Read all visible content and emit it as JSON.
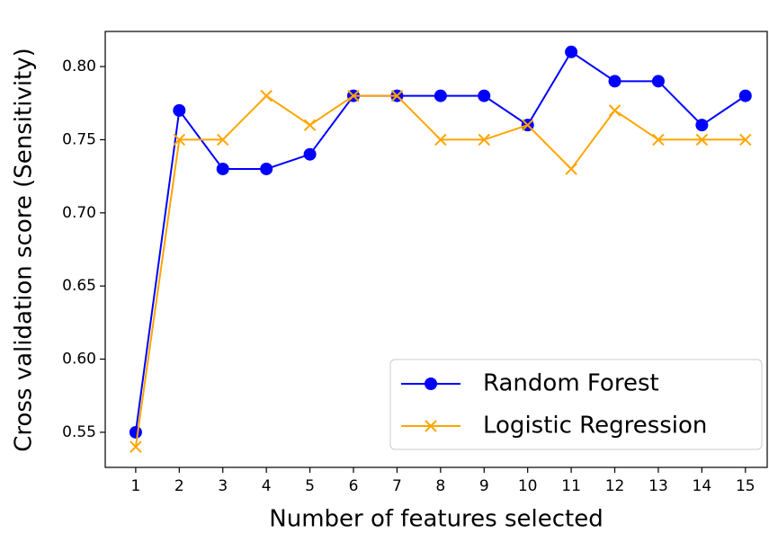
{
  "chart_data": {
    "type": "line",
    "xlabel": "Number of features selected",
    "ylabel": "Cross validation score (Sensitivity)",
    "x": [
      1,
      2,
      3,
      4,
      5,
      6,
      7,
      8,
      9,
      10,
      11,
      12,
      13,
      14,
      15
    ],
    "series": [
      {
        "name": "Random Forest",
        "color": "#0000ff",
        "marker": "o",
        "values": [
          0.55,
          0.77,
          0.73,
          0.73,
          0.74,
          0.78,
          0.78,
          0.78,
          0.78,
          0.76,
          0.81,
          0.79,
          0.79,
          0.76,
          0.78
        ]
      },
      {
        "name": "Logistic Regression",
        "color": "#ffa500",
        "marker": "x",
        "values": [
          0.54,
          0.75,
          0.75,
          0.78,
          0.76,
          0.78,
          0.78,
          0.75,
          0.75,
          0.76,
          0.73,
          0.77,
          0.75,
          0.75,
          0.75
        ]
      }
    ],
    "xlim": [
      0.3,
      15.5
    ],
    "xticks": [
      1,
      2,
      3,
      4,
      5,
      6,
      7,
      8,
      9,
      10,
      11,
      12,
      13,
      14,
      15
    ],
    "ylim": [
      0.526,
      0.824
    ],
    "yticks": [
      {
        "value": 0.55,
        "label": "0.55"
      },
      {
        "value": 0.6,
        "label": "0.60"
      },
      {
        "value": 0.65,
        "label": "0.65"
      },
      {
        "value": 0.7,
        "label": "0.70"
      },
      {
        "value": 0.75,
        "label": "0.75"
      },
      {
        "value": 0.8,
        "label": "0.80"
      }
    ],
    "grid": false,
    "legend": "lower right"
  }
}
